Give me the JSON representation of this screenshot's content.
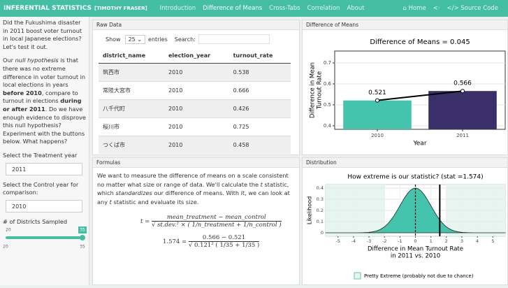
{
  "navbar": {
    "brand": "INFERENTIAL STATISTICS",
    "author": "[TIMOTHY FRASER]",
    "tabs": [
      "Introduction",
      "Difference of Means",
      "Cross-Tabs",
      "Correlation",
      "About"
    ],
    "active_tab": 1,
    "right_links": [
      "Home",
      "Source Code"
    ]
  },
  "sidebar": {
    "intro": "Did the Fukushima disaster in 2011 boost voter turnout in local Japanese elections? Let's test it out.",
    "hypothesis": [
      "Our ",
      "null hypothesis",
      " is that there was no extreme difference in voter turnout in local elections in years ",
      "before 2010",
      ", compare to turnout in elections ",
      "during or after 2011",
      ". Do we have enough evidence to disprove this null hypothesis? Experiment with the buttons below. What happens?"
    ],
    "treatment_label": "Select the Treatment year",
    "treatment_value": "2011",
    "control_label": "Select the Control year for comparison:",
    "control_value": "2010",
    "slider_label": "# of Districts Sampled",
    "slider": {
      "min": 20,
      "max": 35,
      "value": 35
    }
  },
  "raw_data": {
    "title": "Raw Data",
    "show_label": "Show",
    "entries_value": "25",
    "entries_label": "entries",
    "search_label": "Search:",
    "columns": [
      "district_name",
      "election_year",
      "turnout_rate"
    ],
    "rows": [
      [
        "筑西市",
        2010,
        0.538
      ],
      [
        "常陸大宮市",
        2010,
        0.666
      ],
      [
        "八千代町",
        2010,
        0.426
      ],
      [
        "桜川市",
        2010,
        0.725
      ],
      [
        "つくば市",
        2010,
        0.458
      ]
    ]
  },
  "means_panel": {
    "title": "Difference of Means",
    "chart": {
      "type": "bar",
      "title": "Difference of Means = 0.045",
      "y_label": [
        "Difference in Mean",
        "Turnout Rate"
      ],
      "x_label": "Year",
      "categories": [
        "2010",
        "2011"
      ],
      "values": [
        0.521,
        0.566
      ],
      "colors": [
        "#45c4ad",
        "#3b2f6a"
      ],
      "ylim": [
        0.383,
        0.757
      ],
      "yticks": [
        0.4,
        0.5,
        0.6,
        0.7
      ],
      "grid": true
    }
  },
  "formulas": {
    "title": "Formulas",
    "text": [
      "We want to measure the difference of means on a scale consistent no matter what size or range of data. We'll calculate the ",
      "t",
      " statistic, which ",
      "standardizes",
      " our difference of means. With it, we can look at any ",
      "t",
      " statistic and evaluate its size."
    ],
    "general": {
      "lhs": "t",
      "numerator": "mean_treatment − mean_control",
      "denominator": "√ st.dev.² × ( 1/n_treatment + 1/n_control )"
    },
    "applied": {
      "lhs": "1.574",
      "numerator": "0.566 − 0.521",
      "denominator": "√ 0.121² ( 1/35 + 1/35 )"
    }
  },
  "distribution": {
    "title": "Distribution",
    "chart": {
      "type": "density",
      "title": "How extreme is our statistic? (stat =1.574)",
      "y_label": "Likelihood",
      "x_label": [
        "Difference in Mean Turnout Rate",
        "in 2011 vs. 2010"
      ],
      "xlim": [
        -5.8,
        5.8
      ],
      "ylim": [
        -0.031,
        0.431
      ],
      "xticks": [
        -5,
        -4,
        -3,
        -2,
        -1,
        0,
        1,
        2,
        3,
        4,
        5
      ],
      "yticks": [
        0,
        0.1,
        0.2,
        0.3,
        0.4
      ],
      "stat": 1.574,
      "null_mean": 0,
      "extreme_regions": [
        [
          -5.8,
          -1.96
        ],
        [
          1.96,
          5.8
        ]
      ],
      "color": "#45c4ad",
      "legend": "Pretty Extreme (probably not due to chance)",
      "grid": true
    }
  }
}
